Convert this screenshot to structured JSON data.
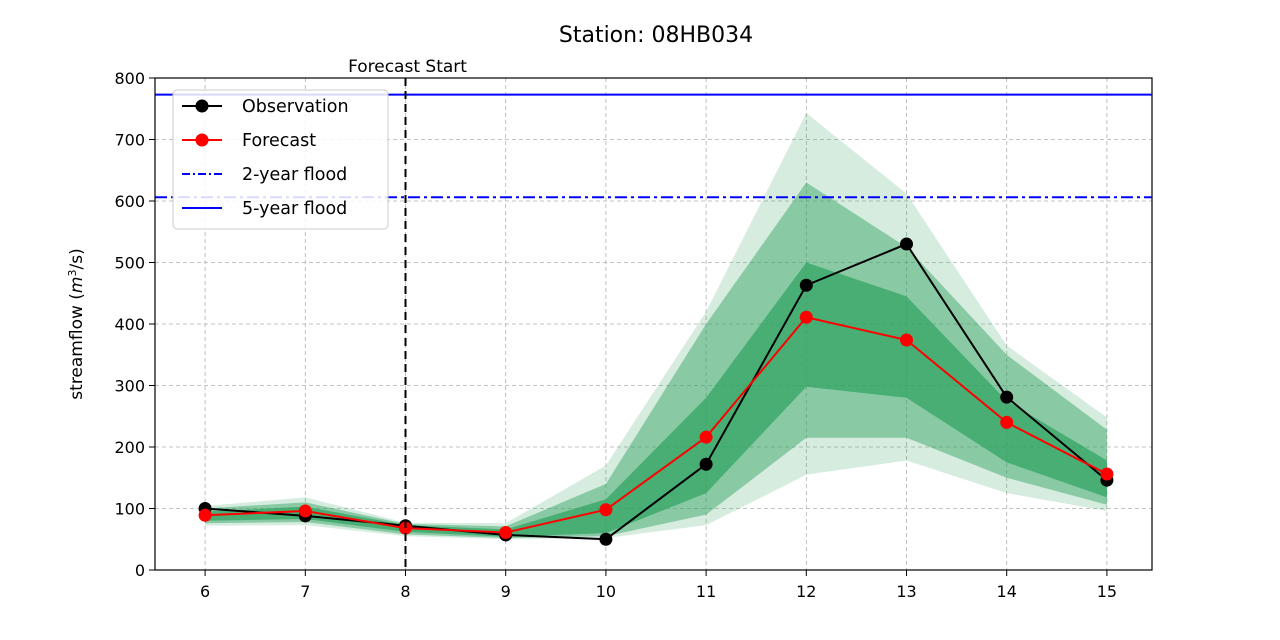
{
  "chart_data": {
    "type": "line",
    "title": "Station: 08HB034",
    "xlabel": "",
    "ylabel": "streamflow (m³/s)",
    "ylabel_parts": {
      "prefix": "streamflow (",
      "var": "m",
      "sup": "3",
      "suffix": "/s)"
    },
    "x": [
      6,
      7,
      8,
      9,
      10,
      11,
      12,
      13,
      14,
      15
    ],
    "xticks": [
      "6",
      "7",
      "8",
      "9",
      "10",
      "11",
      "12",
      "13",
      "14",
      "15"
    ],
    "yticks": [
      "0",
      "100",
      "200",
      "300",
      "400",
      "500",
      "600",
      "700",
      "800"
    ],
    "xlim": [
      5.5,
      15.45
    ],
    "ylim": [
      0,
      800
    ],
    "grid": true,
    "series": [
      {
        "name": "Observation",
        "color": "#000000",
        "values": [
          100,
          88,
          72,
          57,
          50,
          172,
          463,
          530,
          281,
          146
        ]
      },
      {
        "name": "Forecast",
        "color": "#ff0000",
        "values": [
          89,
          96,
          68,
          61,
          98,
          216,
          411,
          374,
          240,
          156
        ]
      }
    ],
    "bands": [
      {
        "name": "outer-range",
        "color": "#2ca25f",
        "opacity": 0.2,
        "lower": [
          72,
          73,
          55,
          50,
          52,
          73,
          155,
          178,
          125,
          96
        ],
        "upper": [
          104,
          118,
          77,
          76,
          170,
          420,
          743,
          612,
          365,
          248
        ]
      },
      {
        "name": "middle-range",
        "color": "#2ca25f",
        "opacity": 0.45,
        "lower": [
          76,
          78,
          58,
          52,
          55,
          90,
          215,
          215,
          150,
          106
        ],
        "upper": [
          100,
          110,
          75,
          71,
          140,
          400,
          630,
          525,
          350,
          228
        ]
      },
      {
        "name": "inner-range",
        "color": "#2ca25f",
        "opacity": 0.7,
        "lower": [
          80,
          83,
          62,
          54,
          60,
          125,
          298,
          280,
          175,
          118
        ],
        "upper": [
          95,
          103,
          73,
          66,
          115,
          280,
          500,
          445,
          275,
          178
        ]
      }
    ],
    "reference_lines": [
      {
        "name": "2-year flood",
        "value": 606,
        "color": "#0000ff",
        "style": "dash-dot"
      },
      {
        "name": "5-year flood",
        "value": 773,
        "color": "#0000ff",
        "style": "solid"
      }
    ],
    "annotation": {
      "text": "Forecast Start",
      "x": 8
    },
    "legend": {
      "position": "top-left",
      "entries": [
        "Observation",
        "Forecast",
        "2-year flood",
        "5-year flood"
      ]
    }
  }
}
